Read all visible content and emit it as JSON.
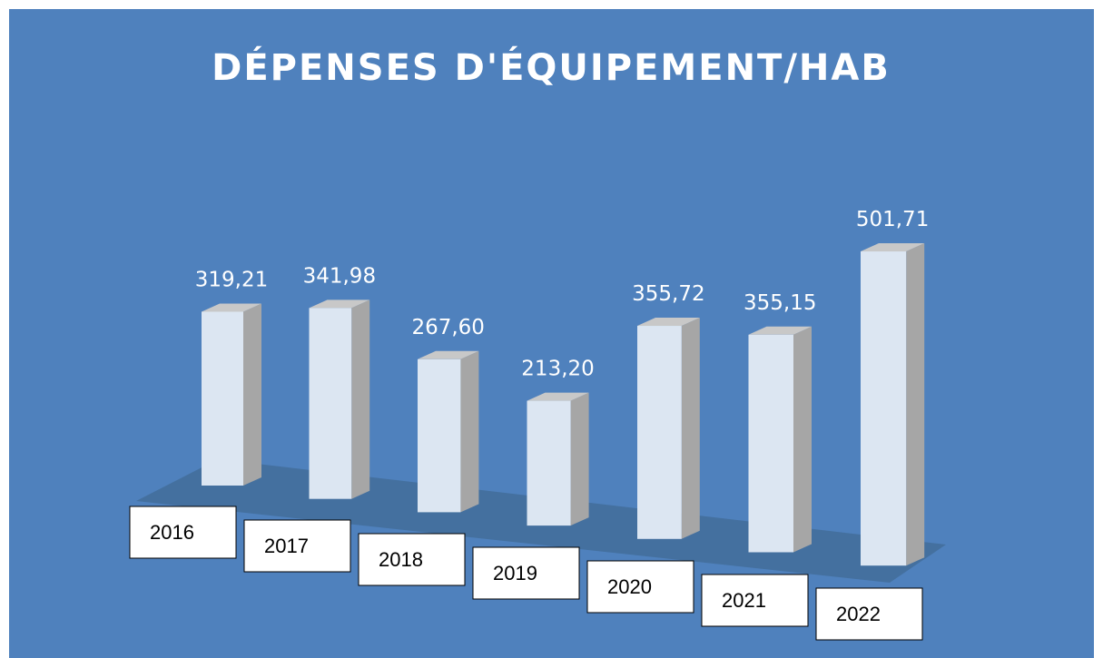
{
  "chart_data": {
    "type": "bar",
    "title": "DÉPENSES D'ÉQUIPEMENT/HAB",
    "categories": [
      "2016",
      "2017",
      "2018",
      "2019",
      "2020",
      "2021",
      "2022"
    ],
    "values": [
      319.21,
      341.98,
      267.6,
      213.2,
      355.72,
      355.15,
      501.71
    ],
    "value_labels": [
      "319,21",
      "341,98",
      "267,60",
      "213,20",
      "355,72",
      "355,15",
      "501,71"
    ],
    "color": "#dce6f2"
  }
}
